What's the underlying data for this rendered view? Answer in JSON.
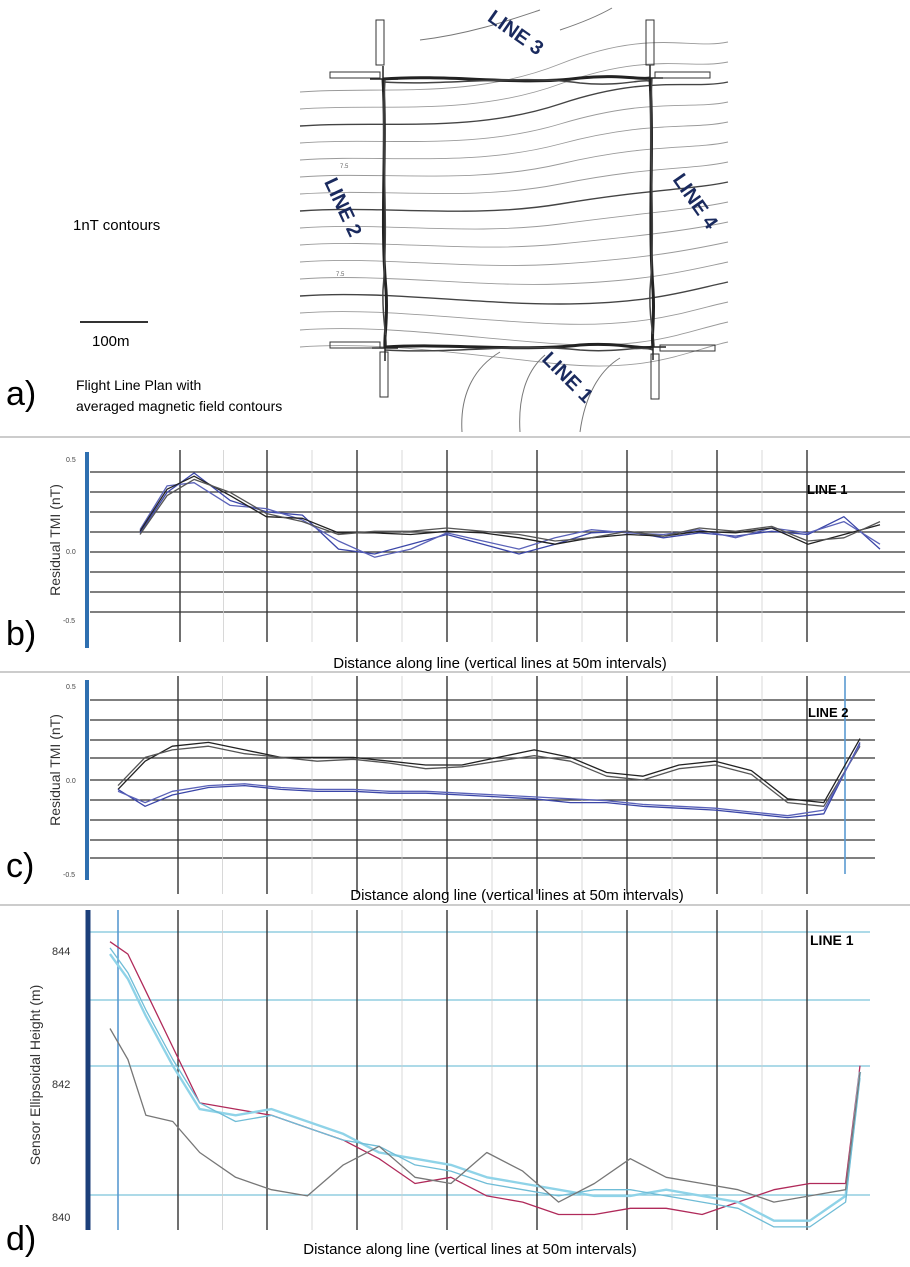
{
  "chart_data": [
    {
      "panel": "a)",
      "type": "other",
      "title": "Flight Line Plan with averaged magnetic field contours",
      "title_lines": [
        "Flight Line Plan with",
        "averaged magnetic field contours"
      ],
      "note": "1nT contours",
      "scale_bar_label": "100m",
      "lines": [
        "LINE 1",
        "LINE 2",
        "LINE 3",
        "LINE 4"
      ],
      "contour_label": "7.5",
      "colors": {
        "contour": "#888888",
        "flight_line": "#222222",
        "line_label": "#1a2a5e"
      }
    },
    {
      "panel": "b)",
      "type": "line",
      "line_label": "LINE 1",
      "xlabel": "Distance along line (vertical lines at 50m intervals)",
      "ylabel": "Residual TMI (nT)",
      "y_ticks": [
        "0.5",
        "0.0",
        "-0.5"
      ],
      "ylim": [
        -0.5,
        0.5
      ],
      "x_grid_interval_m": 50,
      "grid": true,
      "x": [
        0,
        15,
        30,
        50,
        70,
        90,
        110,
        130,
        150,
        170,
        190,
        210,
        230,
        250,
        270,
        290,
        310,
        330,
        350,
        370,
        390,
        410
      ],
      "series": [
        {
          "color": "#3b46a8",
          "values": [
            0.05,
            0.3,
            0.42,
            0.25,
            0.18,
            0.16,
            -0.05,
            -0.08,
            -0.02,
            0.04,
            -0.02,
            -0.08,
            -0.02,
            0.05,
            0.06,
            0.02,
            0.05,
            0.03,
            0.06,
            0.04,
            0.15,
            -0.05
          ]
        },
        {
          "color": "#5a62b8",
          "values": [
            0.07,
            0.34,
            0.36,
            0.22,
            0.2,
            0.13,
            0.0,
            -0.1,
            -0.05,
            0.05,
            0.0,
            -0.05,
            0.02,
            0.07,
            0.05,
            0.04,
            0.07,
            0.02,
            0.08,
            0.05,
            0.12,
            -0.02
          ]
        },
        {
          "color": "#222222",
          "values": [
            0.06,
            0.32,
            0.4,
            0.28,
            0.15,
            0.14,
            0.05,
            0.05,
            0.04,
            0.06,
            0.05,
            0.02,
            -0.02,
            0.02,
            0.04,
            0.03,
            0.06,
            0.05,
            0.08,
            -0.02,
            0.04,
            0.1
          ]
        },
        {
          "color": "#555555",
          "values": [
            0.04,
            0.28,
            0.38,
            0.3,
            0.17,
            0.12,
            0.04,
            0.06,
            0.06,
            0.08,
            0.06,
            0.04,
            0.0,
            0.02,
            0.06,
            0.03,
            0.08,
            0.06,
            0.09,
            0.0,
            0.02,
            0.12
          ]
        }
      ]
    },
    {
      "panel": "c)",
      "type": "line",
      "line_label": "LINE 2",
      "xlabel": "Distance along line (vertical lines at 50m intervals)",
      "ylabel": "Residual TMI (nT)",
      "y_ticks": [
        "0.5",
        "0.0",
        "-0.5"
      ],
      "ylim": [
        -0.5,
        0.5
      ],
      "x_grid_interval_m": 50,
      "grid": true,
      "x": [
        0,
        15,
        30,
        50,
        70,
        90,
        110,
        130,
        150,
        170,
        190,
        210,
        230,
        250,
        270,
        290,
        310,
        330,
        350,
        370,
        390,
        410
      ],
      "series": [
        {
          "color": "#222222",
          "values": [
            -0.05,
            0.1,
            0.18,
            0.2,
            0.16,
            0.12,
            0.12,
            0.12,
            0.1,
            0.08,
            0.08,
            0.12,
            0.16,
            0.12,
            0.04,
            0.02,
            0.08,
            0.1,
            0.05,
            -0.1,
            -0.12,
            0.22
          ]
        },
        {
          "color": "#555555",
          "values": [
            -0.03,
            0.12,
            0.16,
            0.18,
            0.14,
            0.12,
            0.1,
            0.11,
            0.09,
            0.06,
            0.07,
            0.1,
            0.13,
            0.1,
            0.02,
            0.0,
            0.06,
            0.08,
            0.03,
            -0.12,
            -0.14,
            0.18
          ]
        },
        {
          "color": "#3b46a8",
          "values": [
            -0.05,
            -0.14,
            -0.08,
            -0.04,
            -0.03,
            -0.05,
            -0.06,
            -0.06,
            -0.07,
            -0.07,
            -0.08,
            -0.09,
            -0.1,
            -0.12,
            -0.12,
            -0.14,
            -0.15,
            -0.16,
            -0.18,
            -0.2,
            -0.18,
            0.2
          ]
        },
        {
          "color": "#5a62b8",
          "values": [
            -0.06,
            -0.12,
            -0.06,
            -0.03,
            -0.02,
            -0.04,
            -0.05,
            -0.05,
            -0.06,
            -0.06,
            -0.07,
            -0.08,
            -0.09,
            -0.1,
            -0.11,
            -0.13,
            -0.14,
            -0.15,
            -0.17,
            -0.19,
            -0.16,
            0.19
          ]
        }
      ]
    },
    {
      "panel": "d)",
      "type": "line",
      "line_label": "LINE 1",
      "xlabel": "Distance along line (vertical lines at 50m intervals)",
      "ylabel": "Sensor Ellipsoidal Height (m)",
      "y_ticks": [
        "844",
        "842",
        "840"
      ],
      "ylim": [
        839.75,
        844.75
      ],
      "x_grid_interval_m": 50,
      "grid": true,
      "x": [
        0,
        10,
        20,
        35,
        50,
        70,
        90,
        110,
        130,
        150,
        170,
        190,
        210,
        230,
        250,
        270,
        290,
        310,
        330,
        350,
        370,
        390,
        410,
        418
      ],
      "series": [
        {
          "color": "#b02a5a",
          "values": [
            844.4,
            844.2,
            843.6,
            842.7,
            841.8,
            841.7,
            841.6,
            841.4,
            841.2,
            840.9,
            840.5,
            840.6,
            840.3,
            840.2,
            840.0,
            840.0,
            840.1,
            840.1,
            840.0,
            840.2,
            840.4,
            840.5,
            840.5,
            842.4
          ]
        },
        {
          "color": "#8fd3e8",
          "values": [
            844.2,
            843.8,
            843.2,
            842.4,
            841.7,
            841.6,
            841.7,
            841.5,
            841.3,
            841.0,
            840.9,
            840.8,
            840.6,
            840.5,
            840.4,
            840.3,
            840.3,
            840.4,
            840.3,
            840.2,
            839.9,
            839.9,
            840.3,
            842.3
          ]
        },
        {
          "color": "#6fbcd6",
          "values": [
            844.3,
            843.9,
            843.3,
            842.5,
            841.8,
            841.5,
            841.6,
            841.4,
            841.2,
            841.1,
            840.8,
            840.7,
            840.5,
            840.4,
            840.3,
            840.4,
            840.4,
            840.3,
            840.2,
            840.1,
            839.8,
            839.8,
            840.2,
            842.2
          ]
        },
        {
          "color": "#777777",
          "values": [
            843.0,
            842.5,
            841.6,
            841.5,
            841.0,
            840.6,
            840.4,
            840.3,
            840.8,
            841.1,
            840.6,
            840.5,
            841.0,
            840.7,
            840.2,
            840.5,
            840.9,
            840.6,
            840.5,
            840.4,
            840.2,
            840.3,
            840.4,
            842.3
          ]
        }
      ]
    }
  ]
}
